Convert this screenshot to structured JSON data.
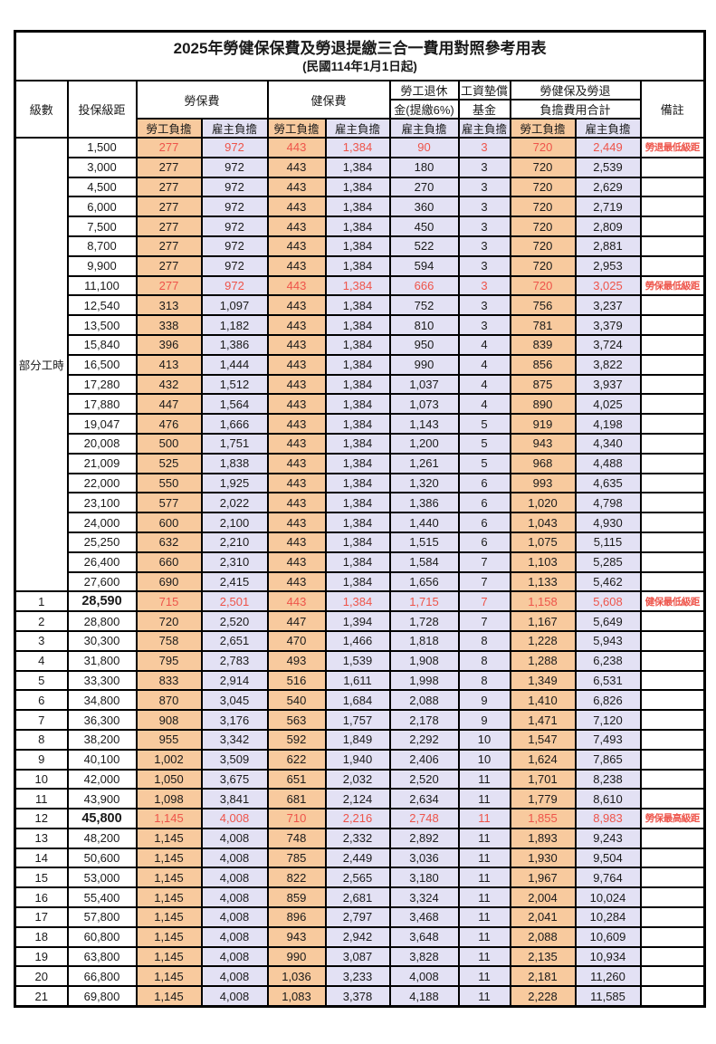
{
  "title": "2025年勞健保保費及勞退提繳三合一費用對照參考用表",
  "subtitle": "(民國114年1月1日起)",
  "colors": {
    "employee_bg": "#f8ca9e",
    "employer_bg": "#e3e1f4",
    "highlight_text": "#ee544a",
    "border": "#000000"
  },
  "header": {
    "level": "級數",
    "bracket": "投保級距",
    "labor_ins": "勞保費",
    "health_ins": "健保費",
    "pension_line1": "勞工退休",
    "pension_line2": "金(提繳6%)",
    "fund_line1": "工資墊償",
    "fund_line2": "基金",
    "total_line1": "勞健保及勞退",
    "total_line2": "負擔費用合計",
    "remark": "備註",
    "employee": "勞工負擔",
    "employer": "雇主負擔"
  },
  "group_label": "部分工時",
  "group_rowspan": 23,
  "rows": [
    {
      "level": "",
      "bracket": "1,500",
      "v": [
        "277",
        "972",
        "443",
        "1,384",
        "90",
        "3",
        "720",
        "2,449"
      ],
      "remark": "勞退最低級距",
      "hl": true,
      "bold": false
    },
    {
      "level": "",
      "bracket": "3,000",
      "v": [
        "277",
        "972",
        "443",
        "1,384",
        "180",
        "3",
        "720",
        "2,539"
      ],
      "remark": "",
      "hl": false,
      "bold": false
    },
    {
      "level": "",
      "bracket": "4,500",
      "v": [
        "277",
        "972",
        "443",
        "1,384",
        "270",
        "3",
        "720",
        "2,629"
      ],
      "remark": "",
      "hl": false,
      "bold": false
    },
    {
      "level": "",
      "bracket": "6,000",
      "v": [
        "277",
        "972",
        "443",
        "1,384",
        "360",
        "3",
        "720",
        "2,719"
      ],
      "remark": "",
      "hl": false,
      "bold": false
    },
    {
      "level": "",
      "bracket": "7,500",
      "v": [
        "277",
        "972",
        "443",
        "1,384",
        "450",
        "3",
        "720",
        "2,809"
      ],
      "remark": "",
      "hl": false,
      "bold": false
    },
    {
      "level": "",
      "bracket": "8,700",
      "v": [
        "277",
        "972",
        "443",
        "1,384",
        "522",
        "3",
        "720",
        "2,881"
      ],
      "remark": "",
      "hl": false,
      "bold": false
    },
    {
      "level": "",
      "bracket": "9,900",
      "v": [
        "277",
        "972",
        "443",
        "1,384",
        "594",
        "3",
        "720",
        "2,953"
      ],
      "remark": "",
      "hl": false,
      "bold": false
    },
    {
      "level": "",
      "bracket": "11,100",
      "v": [
        "277",
        "972",
        "443",
        "1,384",
        "666",
        "3",
        "720",
        "3,025"
      ],
      "remark": "勞保最低級距",
      "hl": true,
      "bold": false
    },
    {
      "level": "",
      "bracket": "12,540",
      "v": [
        "313",
        "1,097",
        "443",
        "1,384",
        "752",
        "3",
        "756",
        "3,237"
      ],
      "remark": "",
      "hl": false,
      "bold": false
    },
    {
      "level": "",
      "bracket": "13,500",
      "v": [
        "338",
        "1,182",
        "443",
        "1,384",
        "810",
        "3",
        "781",
        "3,379"
      ],
      "remark": "",
      "hl": false,
      "bold": false
    },
    {
      "level": "",
      "bracket": "15,840",
      "v": [
        "396",
        "1,386",
        "443",
        "1,384",
        "950",
        "4",
        "839",
        "3,724"
      ],
      "remark": "",
      "hl": false,
      "bold": false
    },
    {
      "level": "",
      "bracket": "16,500",
      "v": [
        "413",
        "1,444",
        "443",
        "1,384",
        "990",
        "4",
        "856",
        "3,822"
      ],
      "remark": "",
      "hl": false,
      "bold": false
    },
    {
      "level": "",
      "bracket": "17,280",
      "v": [
        "432",
        "1,512",
        "443",
        "1,384",
        "1,037",
        "4",
        "875",
        "3,937"
      ],
      "remark": "",
      "hl": false,
      "bold": false
    },
    {
      "level": "",
      "bracket": "17,880",
      "v": [
        "447",
        "1,564",
        "443",
        "1,384",
        "1,073",
        "4",
        "890",
        "4,025"
      ],
      "remark": "",
      "hl": false,
      "bold": false
    },
    {
      "level": "",
      "bracket": "19,047",
      "v": [
        "476",
        "1,666",
        "443",
        "1,384",
        "1,143",
        "5",
        "919",
        "4,198"
      ],
      "remark": "",
      "hl": false,
      "bold": false
    },
    {
      "level": "",
      "bracket": "20,008",
      "v": [
        "500",
        "1,751",
        "443",
        "1,384",
        "1,200",
        "5",
        "943",
        "4,340"
      ],
      "remark": "",
      "hl": false,
      "bold": false
    },
    {
      "level": "",
      "bracket": "21,009",
      "v": [
        "525",
        "1,838",
        "443",
        "1,384",
        "1,261",
        "5",
        "968",
        "4,488"
      ],
      "remark": "",
      "hl": false,
      "bold": false
    },
    {
      "level": "",
      "bracket": "22,000",
      "v": [
        "550",
        "1,925",
        "443",
        "1,384",
        "1,320",
        "6",
        "993",
        "4,635"
      ],
      "remark": "",
      "hl": false,
      "bold": false
    },
    {
      "level": "",
      "bracket": "23,100",
      "v": [
        "577",
        "2,022",
        "443",
        "1,384",
        "1,386",
        "6",
        "1,020",
        "4,798"
      ],
      "remark": "",
      "hl": false,
      "bold": false
    },
    {
      "level": "",
      "bracket": "24,000",
      "v": [
        "600",
        "2,100",
        "443",
        "1,384",
        "1,440",
        "6",
        "1,043",
        "4,930"
      ],
      "remark": "",
      "hl": false,
      "bold": false
    },
    {
      "level": "",
      "bracket": "25,250",
      "v": [
        "632",
        "2,210",
        "443",
        "1,384",
        "1,515",
        "6",
        "1,075",
        "5,115"
      ],
      "remark": "",
      "hl": false,
      "bold": false
    },
    {
      "level": "",
      "bracket": "26,400",
      "v": [
        "660",
        "2,310",
        "443",
        "1,384",
        "1,584",
        "7",
        "1,103",
        "5,285"
      ],
      "remark": "",
      "hl": false,
      "bold": false
    },
    {
      "level": "",
      "bracket": "27,600",
      "v": [
        "690",
        "2,415",
        "443",
        "1,384",
        "1,656",
        "7",
        "1,133",
        "5,462"
      ],
      "remark": "",
      "hl": false,
      "bold": false
    },
    {
      "level": "1",
      "bracket": "28,590",
      "v": [
        "715",
        "2,501",
        "443",
        "1,384",
        "1,715",
        "7",
        "1,158",
        "5,608"
      ],
      "remark": "健保最低級距",
      "hl": true,
      "bold": true
    },
    {
      "level": "2",
      "bracket": "28,800",
      "v": [
        "720",
        "2,520",
        "447",
        "1,394",
        "1,728",
        "7",
        "1,167",
        "5,649"
      ],
      "remark": "",
      "hl": false,
      "bold": false
    },
    {
      "level": "3",
      "bracket": "30,300",
      "v": [
        "758",
        "2,651",
        "470",
        "1,466",
        "1,818",
        "8",
        "1,228",
        "5,943"
      ],
      "remark": "",
      "hl": false,
      "bold": false
    },
    {
      "level": "4",
      "bracket": "31,800",
      "v": [
        "795",
        "2,783",
        "493",
        "1,539",
        "1,908",
        "8",
        "1,288",
        "6,238"
      ],
      "remark": "",
      "hl": false,
      "bold": false
    },
    {
      "level": "5",
      "bracket": "33,300",
      "v": [
        "833",
        "2,914",
        "516",
        "1,611",
        "1,998",
        "8",
        "1,349",
        "6,531"
      ],
      "remark": "",
      "hl": false,
      "bold": false
    },
    {
      "level": "6",
      "bracket": "34,800",
      "v": [
        "870",
        "3,045",
        "540",
        "1,684",
        "2,088",
        "9",
        "1,410",
        "6,826"
      ],
      "remark": "",
      "hl": false,
      "bold": false
    },
    {
      "level": "7",
      "bracket": "36,300",
      "v": [
        "908",
        "3,176",
        "563",
        "1,757",
        "2,178",
        "9",
        "1,471",
        "7,120"
      ],
      "remark": "",
      "hl": false,
      "bold": false
    },
    {
      "level": "8",
      "bracket": "38,200",
      "v": [
        "955",
        "3,342",
        "592",
        "1,849",
        "2,292",
        "10",
        "1,547",
        "7,493"
      ],
      "remark": "",
      "hl": false,
      "bold": false
    },
    {
      "level": "9",
      "bracket": "40,100",
      "v": [
        "1,002",
        "3,509",
        "622",
        "1,940",
        "2,406",
        "10",
        "1,624",
        "7,865"
      ],
      "remark": "",
      "hl": false,
      "bold": false
    },
    {
      "level": "10",
      "bracket": "42,000",
      "v": [
        "1,050",
        "3,675",
        "651",
        "2,032",
        "2,520",
        "11",
        "1,701",
        "8,238"
      ],
      "remark": "",
      "hl": false,
      "bold": false
    },
    {
      "level": "11",
      "bracket": "43,900",
      "v": [
        "1,098",
        "3,841",
        "681",
        "2,124",
        "2,634",
        "11",
        "1,779",
        "8,610"
      ],
      "remark": "",
      "hl": false,
      "bold": false
    },
    {
      "level": "12",
      "bracket": "45,800",
      "v": [
        "1,145",
        "4,008",
        "710",
        "2,216",
        "2,748",
        "11",
        "1,855",
        "8,983"
      ],
      "remark": "勞保最高級距",
      "hl": true,
      "bold": true
    },
    {
      "level": "13",
      "bracket": "48,200",
      "v": [
        "1,145",
        "4,008",
        "748",
        "2,332",
        "2,892",
        "11",
        "1,893",
        "9,243"
      ],
      "remark": "",
      "hl": false,
      "bold": false
    },
    {
      "level": "14",
      "bracket": "50,600",
      "v": [
        "1,145",
        "4,008",
        "785",
        "2,449",
        "3,036",
        "11",
        "1,930",
        "9,504"
      ],
      "remark": "",
      "hl": false,
      "bold": false
    },
    {
      "level": "15",
      "bracket": "53,000",
      "v": [
        "1,145",
        "4,008",
        "822",
        "2,565",
        "3,180",
        "11",
        "1,967",
        "9,764"
      ],
      "remark": "",
      "hl": false,
      "bold": false
    },
    {
      "level": "16",
      "bracket": "55,400",
      "v": [
        "1,145",
        "4,008",
        "859",
        "2,681",
        "3,324",
        "11",
        "2,004",
        "10,024"
      ],
      "remark": "",
      "hl": false,
      "bold": false
    },
    {
      "level": "17",
      "bracket": "57,800",
      "v": [
        "1,145",
        "4,008",
        "896",
        "2,797",
        "3,468",
        "11",
        "2,041",
        "10,284"
      ],
      "remark": "",
      "hl": false,
      "bold": false
    },
    {
      "level": "18",
      "bracket": "60,800",
      "v": [
        "1,145",
        "4,008",
        "943",
        "2,942",
        "3,648",
        "11",
        "2,088",
        "10,609"
      ],
      "remark": "",
      "hl": false,
      "bold": false
    },
    {
      "level": "19",
      "bracket": "63,800",
      "v": [
        "1,145",
        "4,008",
        "990",
        "3,087",
        "3,828",
        "11",
        "2,135",
        "10,934"
      ],
      "remark": "",
      "hl": false,
      "bold": false
    },
    {
      "level": "20",
      "bracket": "66,800",
      "v": [
        "1,145",
        "4,008",
        "1,036",
        "3,233",
        "4,008",
        "11",
        "2,181",
        "11,260"
      ],
      "remark": "",
      "hl": false,
      "bold": false
    },
    {
      "level": "21",
      "bracket": "69,800",
      "v": [
        "1,145",
        "4,008",
        "1,083",
        "3,378",
        "4,188",
        "11",
        "2,228",
        "11,585"
      ],
      "remark": "",
      "hl": false,
      "bold": false
    }
  ]
}
